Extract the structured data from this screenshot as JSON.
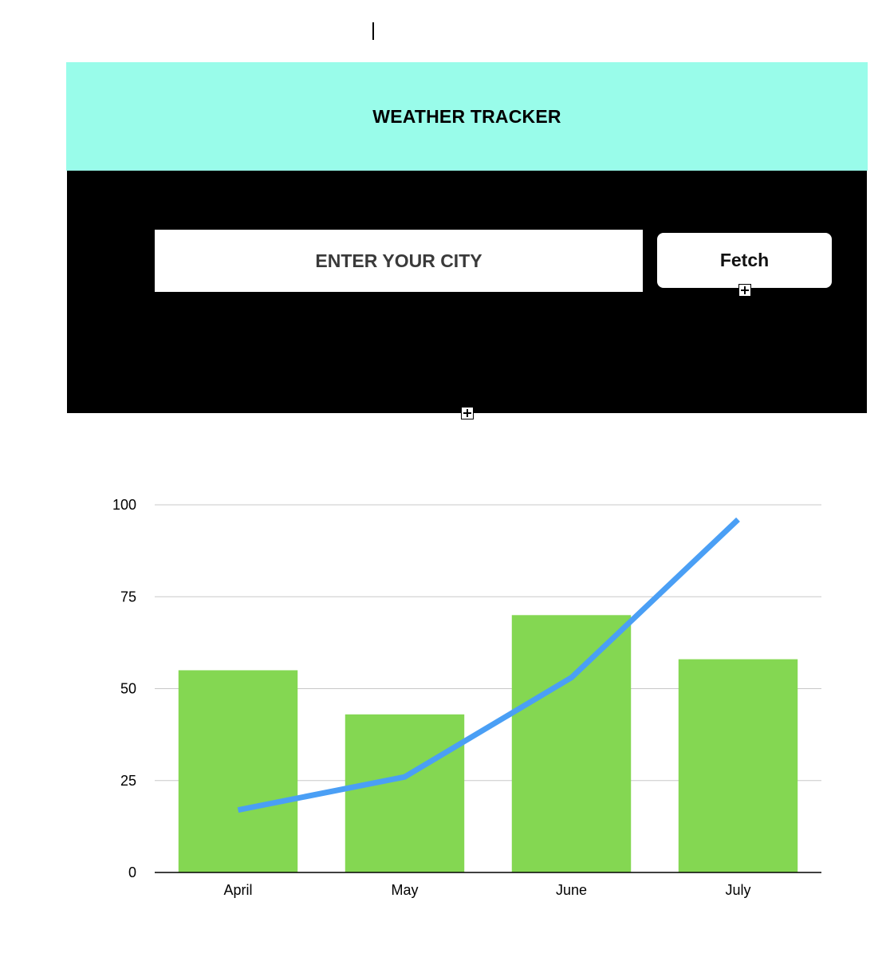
{
  "app": {
    "title": "WEATHER TRACKER",
    "header_color": "#99FCEA",
    "panel_color": "#000000"
  },
  "search": {
    "placeholder": "ENTER YOUR CITY",
    "value": "",
    "button_label": "Fetch"
  },
  "chart_data": {
    "type": "bar",
    "categories": [
      "April",
      "May",
      "June",
      "July"
    ],
    "series": [
      {
        "type": "bar",
        "values": [
          55,
          43,
          70,
          58
        ],
        "color": "#84D752"
      },
      {
        "type": "line",
        "values": [
          17,
          26,
          53,
          96
        ],
        "color": "#4A9FF5"
      }
    ],
    "yticks": [
      0,
      25,
      50,
      75,
      100
    ],
    "ylim": [
      0,
      100
    ],
    "grid": true,
    "legend": "none"
  }
}
